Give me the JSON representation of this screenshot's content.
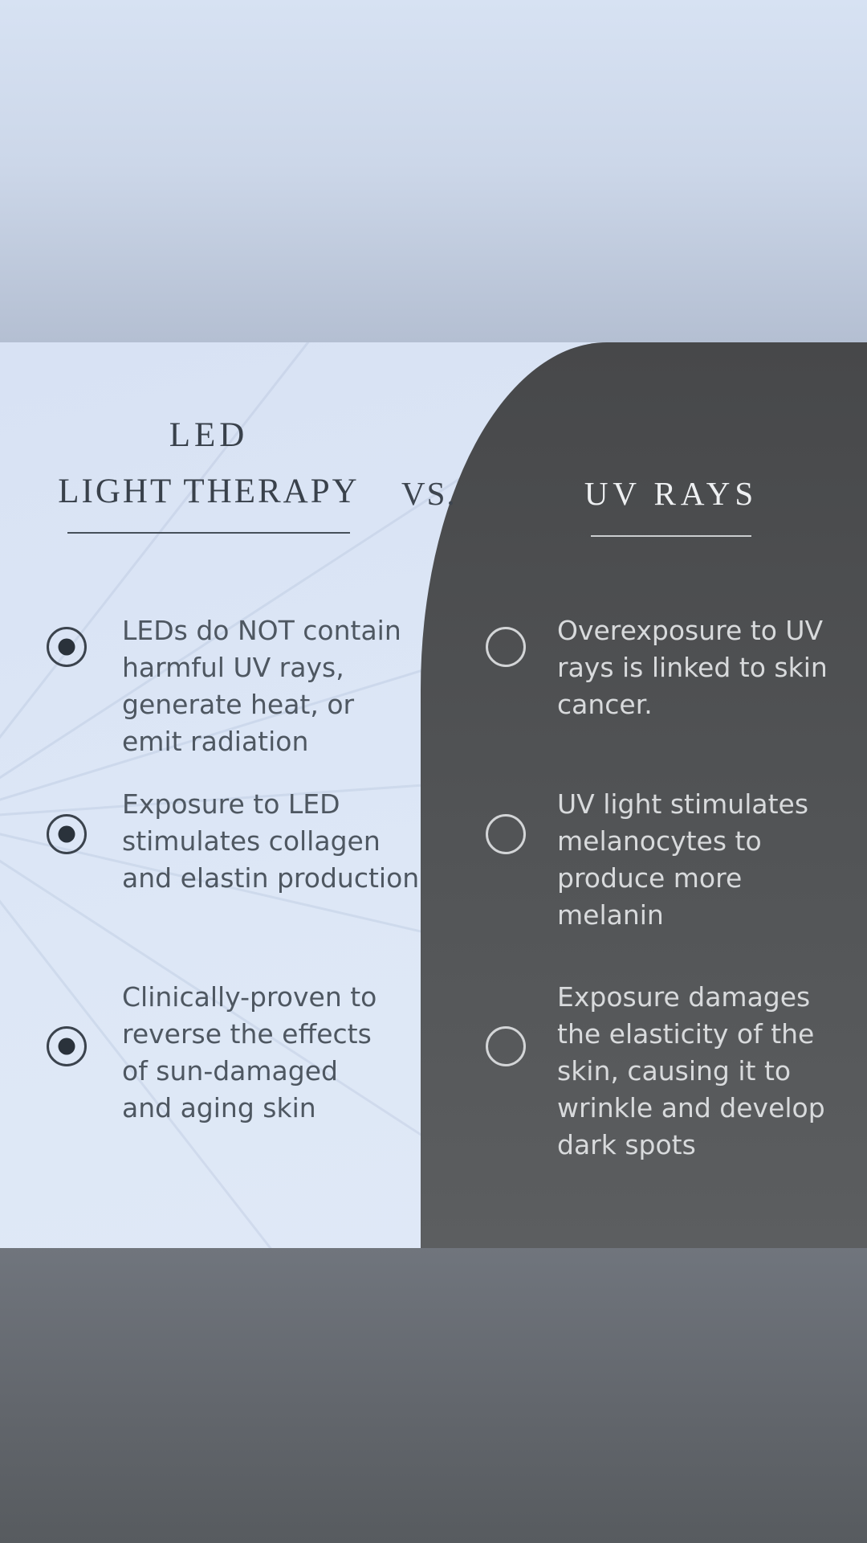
{
  "header": {
    "left_title_line1": "LED",
    "left_title_line2": "LIGHT THERAPY",
    "vs_label": "VS.",
    "right_title": "UV RAYS"
  },
  "left_column": {
    "items": [
      {
        "lines": [
          "LEDs do NOT contain",
          "harmful UV rays,",
          "generate heat, or",
          "emit radiation"
        ]
      },
      {
        "lines": [
          "Exposure to LED",
          "stimulates collagen",
          "and elastin production"
        ]
      },
      {
        "lines": [
          "Clinically-proven to",
          "reverse the effects",
          "of sun-damaged",
          "and aging skin"
        ]
      }
    ]
  },
  "right_column": {
    "items": [
      {
        "lines": [
          "Overexposure to UV",
          "rays is linked to skin",
          "cancer."
        ]
      },
      {
        "lines": [
          "UV light stimulates",
          "melanocytes to",
          "produce more",
          "melanin"
        ]
      },
      {
        "lines": [
          "Exposure damages",
          "the elasticity of the",
          "skin, causing it to",
          "wrinkle and develop",
          "dark spots"
        ]
      }
    ]
  },
  "colors": {
    "top_background_start": "#d7e2f3",
    "top_background_end": "#b4bfd2",
    "left_panel": "#dde7f6",
    "dark_panel": "#4d4f51",
    "bottom_background_start": "#70757d",
    "bottom_background_end": "#575b5f",
    "left_text": "#4e5761",
    "right_text": "#d8dadc",
    "left_title_text": "#39414b",
    "right_title_text": "#eef0f2"
  }
}
